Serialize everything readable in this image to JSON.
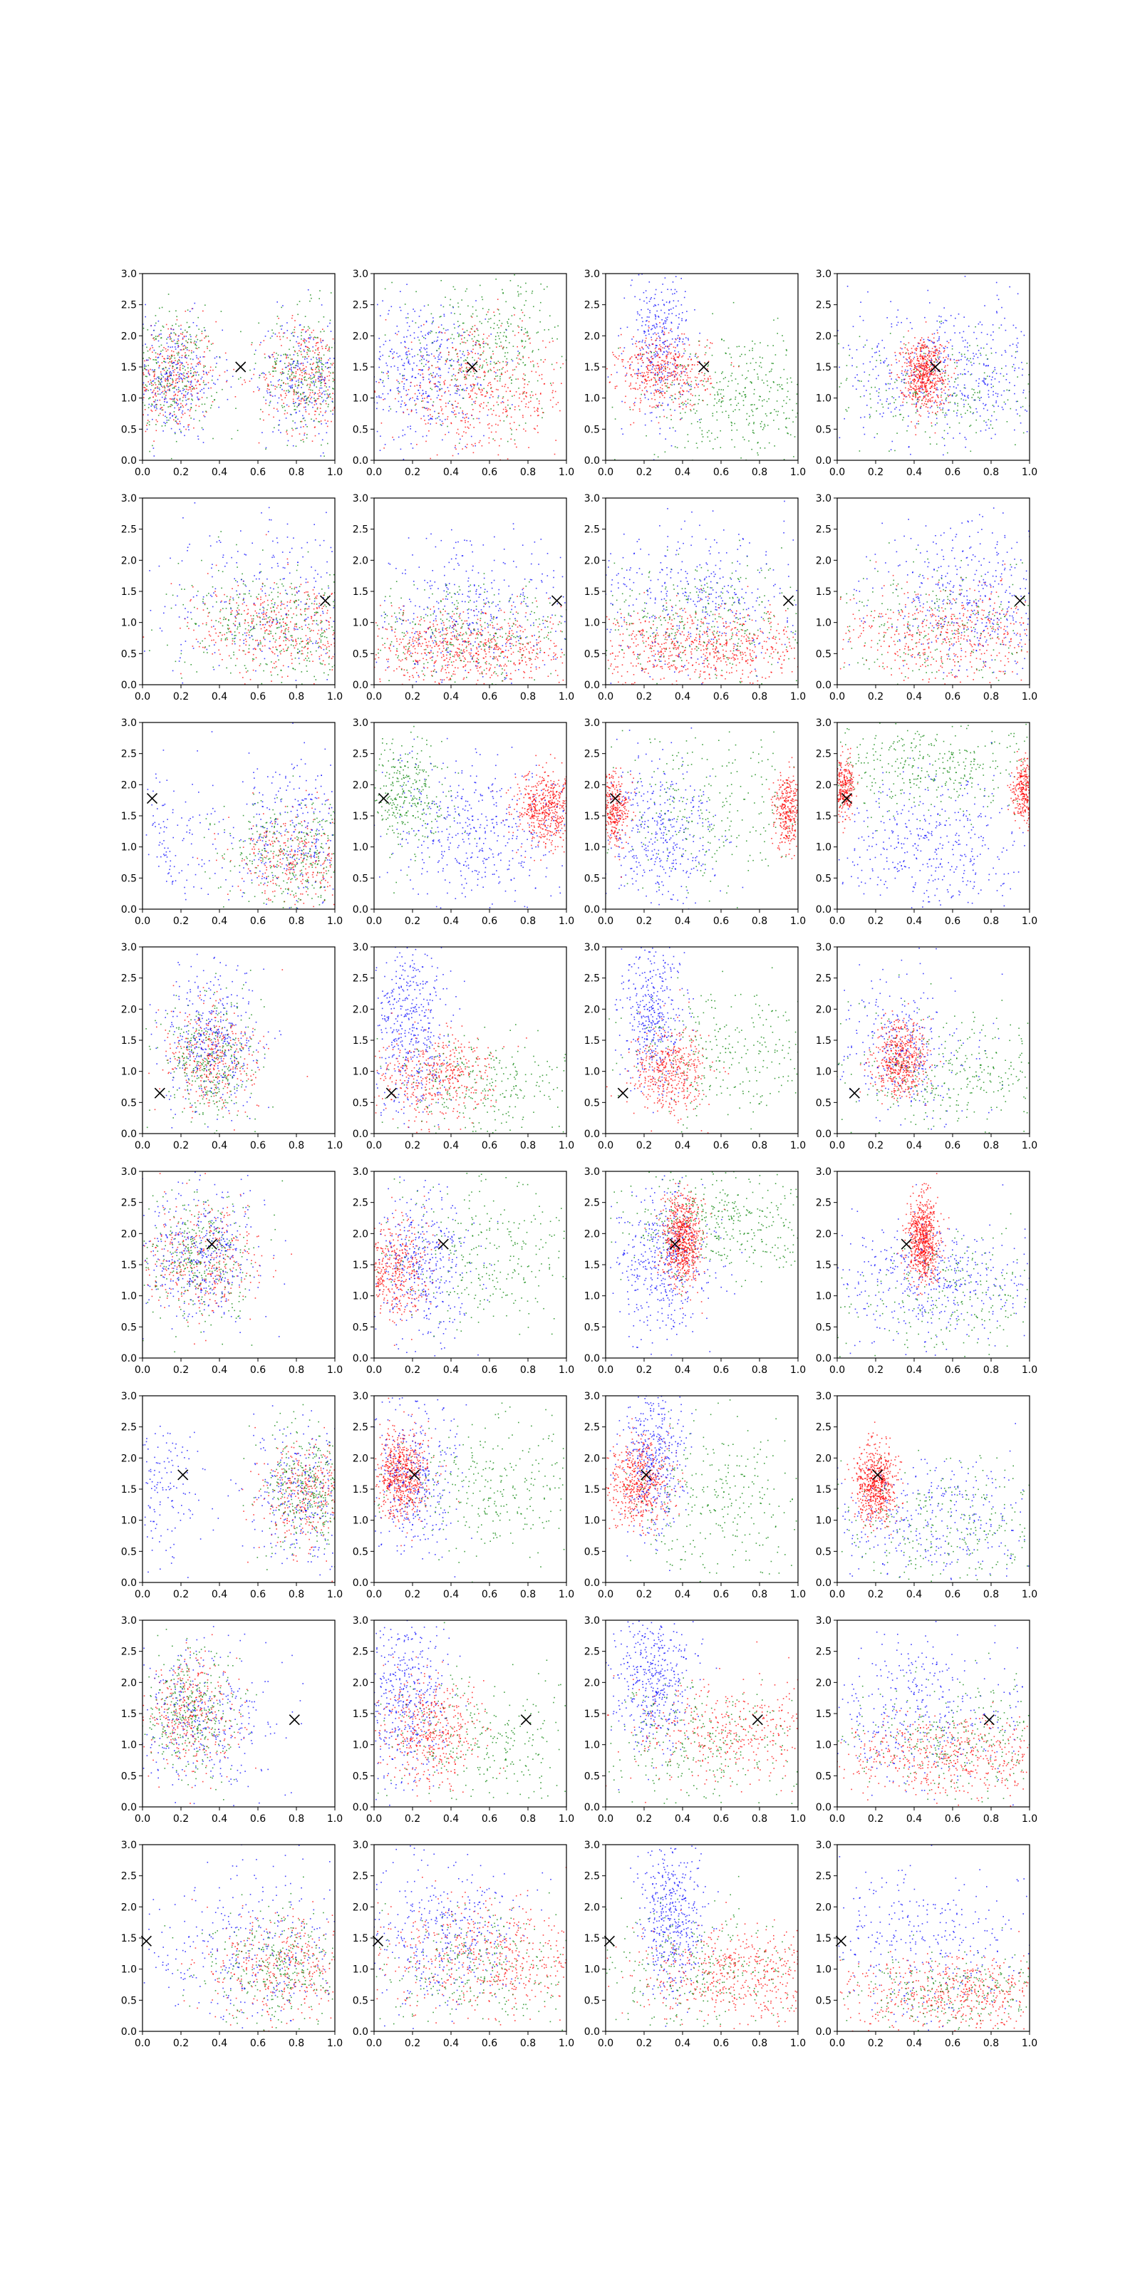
{
  "figure": {
    "rows": 8,
    "cols": 4,
    "background": "#ffffff"
  },
  "chart_data": {
    "type": "scatter",
    "xlim": [
      0,
      1
    ],
    "ylim": [
      0,
      3
    ],
    "x_ticks": [
      0.0,
      0.2,
      0.4,
      0.6,
      0.8,
      1.0
    ],
    "x_tick_labels": [
      "0.0",
      "0.2",
      "0.4",
      "0.6",
      "0.8",
      "1.0"
    ],
    "y_ticks": [
      0.0,
      0.5,
      1.0,
      1.5,
      2.0,
      2.5,
      3.0
    ],
    "y_tick_labels": [
      "0.0",
      "0.5",
      "1.0",
      "1.5",
      "2.0",
      "2.5",
      "3.0"
    ],
    "grid": false,
    "series_colors": {
      "blue": "#0000ff",
      "green": "#008000",
      "red": "#ff0000"
    },
    "marker_color": "#000000",
    "marker_symbol": "x",
    "markers_per_row": [
      [
        0.51,
        1.5
      ],
      [
        0.95,
        1.35
      ],
      [
        0.05,
        1.78
      ],
      [
        0.09,
        0.65
      ],
      [
        0.36,
        1.83
      ],
      [
        0.21,
        1.73
      ],
      [
        0.79,
        1.4
      ],
      [
        0.02,
        1.45
      ]
    ],
    "cluster_layouts": [
      [
        [
          {
            "c": "red",
            "x": 0.15,
            "y": 1.35,
            "sx": 0.12,
            "sy": 0.45,
            "n": 350
          },
          {
            "c": "green",
            "x": 0.15,
            "y": 1.4,
            "sx": 0.12,
            "sy": 0.5,
            "n": 300
          },
          {
            "c": "blue",
            "x": 0.15,
            "y": 1.3,
            "sx": 0.13,
            "sy": 0.5,
            "n": 300
          },
          {
            "c": "red",
            "x": 0.85,
            "y": 1.35,
            "sx": 0.12,
            "sy": 0.45,
            "n": 300
          },
          {
            "c": "green",
            "x": 0.85,
            "y": 1.4,
            "sx": 0.12,
            "sy": 0.5,
            "n": 300
          },
          {
            "c": "blue",
            "x": 0.85,
            "y": 1.3,
            "sx": 0.13,
            "sy": 0.5,
            "n": 250
          }
        ],
        [
          {
            "c": "blue",
            "x": 0.25,
            "y": 1.4,
            "sx": 0.18,
            "sy": 0.6,
            "n": 450
          },
          {
            "c": "green",
            "x": 0.6,
            "y": 1.8,
            "sx": 0.25,
            "sy": 0.6,
            "n": 400
          },
          {
            "c": "red",
            "x": 0.55,
            "y": 1.1,
            "sx": 0.25,
            "sy": 0.5,
            "n": 500
          }
        ],
        [
          {
            "c": "blue",
            "x": 0.28,
            "y": 1.9,
            "sx": 0.08,
            "sy": 0.6,
            "n": 350
          },
          {
            "c": "red",
            "x": 0.3,
            "y": 1.4,
            "sx": 0.12,
            "sy": 0.3,
            "n": 450
          },
          {
            "c": "green",
            "x": 0.7,
            "y": 1.0,
            "sx": 0.25,
            "sy": 0.5,
            "n": 400
          }
        ],
        [
          {
            "c": "blue",
            "x": 0.6,
            "y": 1.4,
            "sx": 0.3,
            "sy": 0.6,
            "n": 550
          },
          {
            "c": "green",
            "x": 0.55,
            "y": 1.1,
            "sx": 0.3,
            "sy": 0.5,
            "n": 250
          },
          {
            "c": "red",
            "x": 0.45,
            "y": 1.4,
            "sx": 0.06,
            "sy": 0.28,
            "n": 600
          }
        ]
      ],
      [
        [
          {
            "c": "red",
            "x": 0.75,
            "y": 0.9,
            "sx": 0.25,
            "sy": 0.4,
            "n": 450
          },
          {
            "c": "green",
            "x": 0.7,
            "y": 0.95,
            "sx": 0.25,
            "sy": 0.45,
            "n": 400
          },
          {
            "c": "blue",
            "x": 0.7,
            "y": 1.3,
            "sx": 0.3,
            "sy": 0.7,
            "n": 300
          }
        ],
        [
          {
            "c": "red",
            "x": 0.5,
            "y": 0.6,
            "sx": 0.3,
            "sy": 0.3,
            "n": 700
          },
          {
            "c": "green",
            "x": 0.5,
            "y": 0.8,
            "sx": 0.3,
            "sy": 0.45,
            "n": 350
          },
          {
            "c": "blue",
            "x": 0.5,
            "y": 1.1,
            "sx": 0.3,
            "sy": 0.6,
            "n": 400
          }
        ],
        [
          {
            "c": "red",
            "x": 0.5,
            "y": 0.6,
            "sx": 0.3,
            "sy": 0.3,
            "n": 700
          },
          {
            "c": "green",
            "x": 0.5,
            "y": 1.0,
            "sx": 0.3,
            "sy": 0.5,
            "n": 350
          },
          {
            "c": "blue",
            "x": 0.5,
            "y": 1.4,
            "sx": 0.3,
            "sy": 0.6,
            "n": 400
          }
        ],
        [
          {
            "c": "red",
            "x": 0.6,
            "y": 0.8,
            "sx": 0.3,
            "sy": 0.4,
            "n": 550
          },
          {
            "c": "blue",
            "x": 0.7,
            "y": 1.4,
            "sx": 0.25,
            "sy": 0.6,
            "n": 450
          },
          {
            "c": "green",
            "x": 0.5,
            "y": 0.9,
            "sx": 0.3,
            "sy": 0.5,
            "n": 250
          }
        ]
      ],
      [
        [
          {
            "c": "red",
            "x": 0.8,
            "y": 0.8,
            "sx": 0.18,
            "sy": 0.4,
            "n": 350
          },
          {
            "c": "green",
            "x": 0.8,
            "y": 0.9,
            "sx": 0.18,
            "sy": 0.45,
            "n": 350
          },
          {
            "c": "blue",
            "x": 0.8,
            "y": 1.2,
            "sx": 0.2,
            "sy": 0.65,
            "n": 350
          },
          {
            "c": "blue",
            "x": 0.15,
            "y": 1.0,
            "sx": 0.1,
            "sy": 0.6,
            "n": 100
          }
        ],
        [
          {
            "c": "green",
            "x": 0.15,
            "y": 1.8,
            "sx": 0.12,
            "sy": 0.45,
            "n": 350
          },
          {
            "c": "red",
            "x": 0.9,
            "y": 1.6,
            "sx": 0.08,
            "sy": 0.3,
            "n": 550
          },
          {
            "c": "blue",
            "x": 0.55,
            "y": 1.2,
            "sx": 0.25,
            "sy": 0.6,
            "n": 450
          }
        ],
        [
          {
            "c": "blue",
            "x": 0.3,
            "y": 1.2,
            "sx": 0.15,
            "sy": 0.6,
            "n": 400
          },
          {
            "c": "green",
            "x": 0.5,
            "y": 1.6,
            "sx": 0.3,
            "sy": 0.6,
            "n": 300
          },
          {
            "c": "red",
            "x": 0.04,
            "y": 1.6,
            "sx": 0.04,
            "sy": 0.3,
            "n": 350
          },
          {
            "c": "red",
            "x": 0.95,
            "y": 1.6,
            "sx": 0.04,
            "sy": 0.3,
            "n": 350
          }
        ],
        [
          {
            "c": "green",
            "x": 0.5,
            "y": 2.3,
            "sx": 0.3,
            "sy": 0.4,
            "n": 400
          },
          {
            "c": "blue",
            "x": 0.5,
            "y": 1.0,
            "sx": 0.3,
            "sy": 0.55,
            "n": 450
          },
          {
            "c": "red",
            "x": 0.03,
            "y": 1.95,
            "sx": 0.03,
            "sy": 0.25,
            "n": 300
          },
          {
            "c": "red",
            "x": 0.97,
            "y": 1.9,
            "sx": 0.03,
            "sy": 0.25,
            "n": 300
          }
        ]
      ],
      [
        [
          {
            "c": "red",
            "x": 0.35,
            "y": 1.2,
            "sx": 0.12,
            "sy": 0.45,
            "n": 350
          },
          {
            "c": "green",
            "x": 0.35,
            "y": 1.2,
            "sx": 0.12,
            "sy": 0.5,
            "n": 350
          },
          {
            "c": "blue",
            "x": 0.35,
            "y": 1.5,
            "sx": 0.13,
            "sy": 0.6,
            "n": 400
          }
        ],
        [
          {
            "c": "blue",
            "x": 0.2,
            "y": 1.6,
            "sx": 0.1,
            "sy": 0.7,
            "n": 450
          },
          {
            "c": "red",
            "x": 0.3,
            "y": 0.9,
            "sx": 0.15,
            "sy": 0.35,
            "n": 450
          },
          {
            "c": "green",
            "x": 0.6,
            "y": 0.7,
            "sx": 0.25,
            "sy": 0.45,
            "n": 300
          }
        ],
        [
          {
            "c": "blue",
            "x": 0.25,
            "y": 1.9,
            "sx": 0.08,
            "sy": 0.6,
            "n": 400
          },
          {
            "c": "red",
            "x": 0.33,
            "y": 1.0,
            "sx": 0.1,
            "sy": 0.35,
            "n": 450
          },
          {
            "c": "green",
            "x": 0.65,
            "y": 1.3,
            "sx": 0.25,
            "sy": 0.5,
            "n": 300
          }
        ],
        [
          {
            "c": "red",
            "x": 0.33,
            "y": 1.2,
            "sx": 0.07,
            "sy": 0.3,
            "n": 550
          },
          {
            "c": "blue",
            "x": 0.35,
            "y": 1.4,
            "sx": 0.18,
            "sy": 0.6,
            "n": 300
          },
          {
            "c": "green",
            "x": 0.6,
            "y": 0.9,
            "sx": 0.3,
            "sy": 0.5,
            "n": 350
          }
        ]
      ],
      [
        [
          {
            "c": "red",
            "x": 0.3,
            "y": 1.6,
            "sx": 0.15,
            "sy": 0.45,
            "n": 350
          },
          {
            "c": "green",
            "x": 0.3,
            "y": 1.6,
            "sx": 0.15,
            "sy": 0.5,
            "n": 350
          },
          {
            "c": "blue",
            "x": 0.3,
            "y": 1.7,
            "sx": 0.15,
            "sy": 0.55,
            "n": 400
          }
        ],
        [
          {
            "c": "red",
            "x": 0.1,
            "y": 1.4,
            "sx": 0.1,
            "sy": 0.4,
            "n": 450
          },
          {
            "c": "blue",
            "x": 0.25,
            "y": 1.5,
            "sx": 0.12,
            "sy": 0.6,
            "n": 400
          },
          {
            "c": "green",
            "x": 0.6,
            "y": 1.6,
            "sx": 0.25,
            "sy": 0.6,
            "n": 300
          }
        ],
        [
          {
            "c": "green",
            "x": 0.6,
            "y": 2.2,
            "sx": 0.25,
            "sy": 0.5,
            "n": 450
          },
          {
            "c": "blue",
            "x": 0.3,
            "y": 1.5,
            "sx": 0.12,
            "sy": 0.6,
            "n": 450
          },
          {
            "c": "red",
            "x": 0.4,
            "y": 1.85,
            "sx": 0.05,
            "sy": 0.35,
            "n": 700
          }
        ],
        [
          {
            "c": "red",
            "x": 0.45,
            "y": 1.9,
            "sx": 0.04,
            "sy": 0.35,
            "n": 700
          },
          {
            "c": "blue",
            "x": 0.5,
            "y": 1.2,
            "sx": 0.3,
            "sy": 0.5,
            "n": 450
          },
          {
            "c": "green",
            "x": 0.6,
            "y": 1.0,
            "sx": 0.3,
            "sy": 0.5,
            "n": 250
          }
        ]
      ],
      [
        [
          {
            "c": "red",
            "x": 0.85,
            "y": 1.4,
            "sx": 0.12,
            "sy": 0.45,
            "n": 350
          },
          {
            "c": "green",
            "x": 0.85,
            "y": 1.5,
            "sx": 0.12,
            "sy": 0.5,
            "n": 350
          },
          {
            "c": "blue",
            "x": 0.85,
            "y": 1.4,
            "sx": 0.15,
            "sy": 0.6,
            "n": 300
          },
          {
            "c": "blue",
            "x": 0.1,
            "y": 1.6,
            "sx": 0.1,
            "sy": 0.6,
            "n": 150
          }
        ],
        [
          {
            "c": "red",
            "x": 0.15,
            "y": 1.75,
            "sx": 0.07,
            "sy": 0.35,
            "n": 650
          },
          {
            "c": "blue",
            "x": 0.2,
            "y": 1.6,
            "sx": 0.12,
            "sy": 0.6,
            "n": 350
          },
          {
            "c": "green",
            "x": 0.6,
            "y": 1.5,
            "sx": 0.25,
            "sy": 0.55,
            "n": 300
          }
        ],
        [
          {
            "c": "red",
            "x": 0.18,
            "y": 1.6,
            "sx": 0.08,
            "sy": 0.35,
            "n": 550
          },
          {
            "c": "blue",
            "x": 0.25,
            "y": 2.0,
            "sx": 0.08,
            "sy": 0.6,
            "n": 400
          },
          {
            "c": "green",
            "x": 0.6,
            "y": 1.3,
            "sx": 0.25,
            "sy": 0.6,
            "n": 300
          }
        ],
        [
          {
            "c": "red",
            "x": 0.2,
            "y": 1.6,
            "sx": 0.05,
            "sy": 0.3,
            "n": 650
          },
          {
            "c": "blue",
            "x": 0.5,
            "y": 1.0,
            "sx": 0.3,
            "sy": 0.5,
            "n": 350
          },
          {
            "c": "green",
            "x": 0.6,
            "y": 1.0,
            "sx": 0.3,
            "sy": 0.5,
            "n": 300
          }
        ]
      ],
      [
        [
          {
            "c": "red",
            "x": 0.25,
            "y": 1.5,
            "sx": 0.12,
            "sy": 0.45,
            "n": 350
          },
          {
            "c": "green",
            "x": 0.25,
            "y": 1.5,
            "sx": 0.12,
            "sy": 0.5,
            "n": 350
          },
          {
            "c": "blue",
            "x": 0.3,
            "y": 1.4,
            "sx": 0.2,
            "sy": 0.6,
            "n": 350
          }
        ],
        [
          {
            "c": "blue",
            "x": 0.15,
            "y": 1.7,
            "sx": 0.12,
            "sy": 0.7,
            "n": 450
          },
          {
            "c": "red",
            "x": 0.3,
            "y": 1.2,
            "sx": 0.12,
            "sy": 0.4,
            "n": 450
          },
          {
            "c": "green",
            "x": 0.6,
            "y": 1.0,
            "sx": 0.3,
            "sy": 0.5,
            "n": 300
          }
        ],
        [
          {
            "c": "blue",
            "x": 0.25,
            "y": 2.0,
            "sx": 0.1,
            "sy": 0.6,
            "n": 450
          },
          {
            "c": "red",
            "x": 0.7,
            "y": 1.2,
            "sx": 0.3,
            "sy": 0.4,
            "n": 450
          },
          {
            "c": "green",
            "x": 0.5,
            "y": 1.0,
            "sx": 0.3,
            "sy": 0.5,
            "n": 300
          }
        ],
        [
          {
            "c": "red",
            "x": 0.6,
            "y": 0.8,
            "sx": 0.3,
            "sy": 0.35,
            "n": 550
          },
          {
            "c": "blue",
            "x": 0.4,
            "y": 1.5,
            "sx": 0.3,
            "sy": 0.6,
            "n": 400
          },
          {
            "c": "green",
            "x": 0.6,
            "y": 1.0,
            "sx": 0.3,
            "sy": 0.5,
            "n": 300
          }
        ]
      ],
      [
        [
          {
            "c": "red",
            "x": 0.75,
            "y": 1.0,
            "sx": 0.2,
            "sy": 0.45,
            "n": 400
          },
          {
            "c": "green",
            "x": 0.7,
            "y": 1.0,
            "sx": 0.2,
            "sy": 0.5,
            "n": 350
          },
          {
            "c": "blue",
            "x": 0.6,
            "y": 1.3,
            "sx": 0.3,
            "sy": 0.65,
            "n": 350
          }
        ],
        [
          {
            "c": "red",
            "x": 0.6,
            "y": 1.2,
            "sx": 0.3,
            "sy": 0.45,
            "n": 550
          },
          {
            "c": "blue",
            "x": 0.35,
            "y": 1.5,
            "sx": 0.2,
            "sy": 0.6,
            "n": 400
          },
          {
            "c": "green",
            "x": 0.5,
            "y": 1.0,
            "sx": 0.3,
            "sy": 0.5,
            "n": 300
          }
        ],
        [
          {
            "c": "blue",
            "x": 0.35,
            "y": 1.8,
            "sx": 0.08,
            "sy": 0.6,
            "n": 450
          },
          {
            "c": "red",
            "x": 0.7,
            "y": 0.9,
            "sx": 0.25,
            "sy": 0.4,
            "n": 550
          },
          {
            "c": "green",
            "x": 0.5,
            "y": 0.9,
            "sx": 0.3,
            "sy": 0.5,
            "n": 300
          }
        ],
        [
          {
            "c": "red",
            "x": 0.6,
            "y": 0.6,
            "sx": 0.3,
            "sy": 0.3,
            "n": 550
          },
          {
            "c": "green",
            "x": 0.6,
            "y": 0.6,
            "sx": 0.3,
            "sy": 0.35,
            "n": 300
          },
          {
            "c": "blue",
            "x": 0.4,
            "y": 1.4,
            "sx": 0.3,
            "sy": 0.6,
            "n": 350
          }
        ]
      ]
    ]
  }
}
